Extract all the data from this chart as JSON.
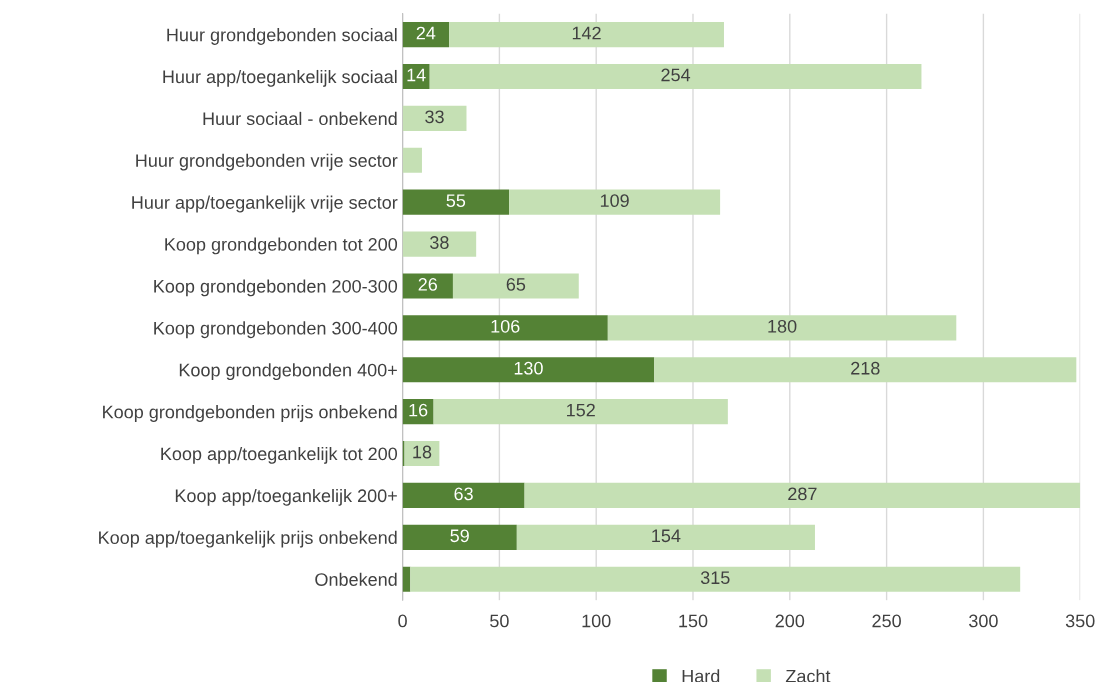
{
  "chart_data": {
    "type": "bar",
    "orientation": "horizontal",
    "stacked": true,
    "categories": [
      "Huur grondgebonden sociaal",
      "Huur app/toegankelijk sociaal",
      "Huur sociaal - onbekend",
      "Huur grondgebonden vrije sector",
      "Huur app/toegankelijk vrije sector",
      "Koop grondgebonden tot 200",
      "Koop grondgebonden 200-300",
      "Koop grondgebonden 300-400",
      "Koop grondgebonden 400+",
      "Koop grondgebonden prijs onbekend",
      "Koop app/toegankelijk tot 200",
      "Koop app/toegankelijk 200+",
      "Koop app/toegankelijk prijs onbekend",
      "Onbekend"
    ],
    "series": [
      {
        "name": "Hard",
        "color": "#548235",
        "values": [
          24,
          14,
          0,
          0,
          55,
          0,
          26,
          106,
          130,
          16,
          1,
          63,
          59,
          4
        ],
        "value_labels": [
          "24",
          "14",
          null,
          null,
          "55",
          null,
          "26",
          "106",
          "130",
          "16",
          null,
          "63",
          "59",
          null
        ]
      },
      {
        "name": "Zacht",
        "color": "#c5e0b4",
        "values": [
          142,
          254,
          33,
          10,
          109,
          38,
          65,
          180,
          218,
          152,
          18,
          287,
          154,
          315
        ],
        "value_labels": [
          "142",
          "254",
          "33",
          null,
          "109",
          "38",
          "65",
          "180",
          "218",
          "152",
          "18",
          "287",
          "154",
          "315"
        ]
      }
    ],
    "xlim": [
      0,
      350
    ],
    "xticks": [
      0,
      50,
      100,
      150,
      200,
      250,
      300,
      350
    ],
    "grid": "x",
    "legend": "bottom"
  }
}
